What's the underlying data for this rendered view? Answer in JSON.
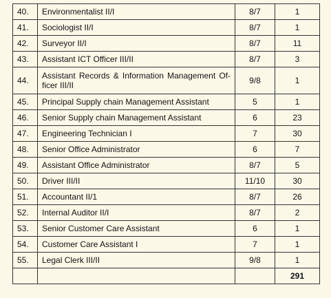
{
  "table": {
    "rows": [
      [
        "40.",
        "Environmentalist II/I",
        "8/7",
        "1"
      ],
      [
        "41.",
        "Sociologist II/I",
        "8/7",
        "1"
      ],
      [
        "42.",
        "Surveyor II/I",
        "8/7",
        "11"
      ],
      [
        "43.",
        "Assistant ICT Officer III/II",
        "8/7",
        "3"
      ],
      [
        "44.",
        "Assistant Records & Information Management Of-ficer III/II",
        "9/8",
        "1"
      ],
      [
        "45.",
        "Principal Supply chain Management Assistant",
        "5",
        "1"
      ],
      [
        "46.",
        "Senior Supply chain Management Assistant",
        "6",
        "23"
      ],
      [
        "47.",
        "Engineering Technician I",
        "7",
        "30"
      ],
      [
        "48.",
        "Senior Office Administrator",
        "6",
        "7"
      ],
      [
        "49.",
        "Assistant Office Administrator",
        "8/7",
        "5"
      ],
      [
        "50.",
        "Driver III/II",
        "11/10",
        "30"
      ],
      [
        "51.",
        "Accountant II/1",
        "8/7",
        "26"
      ],
      [
        "52.",
        "Internal Auditor II/I",
        "8/7",
        "2"
      ],
      [
        "53.",
        "Senior Customer Care Assistant",
        "6",
        "1"
      ],
      [
        "54.",
        "Customer Care Assistant I",
        "7",
        "1"
      ],
      [
        "55.",
        "Legal Clerk III/II",
        "9/8",
        "1"
      ]
    ],
    "total": "291"
  }
}
